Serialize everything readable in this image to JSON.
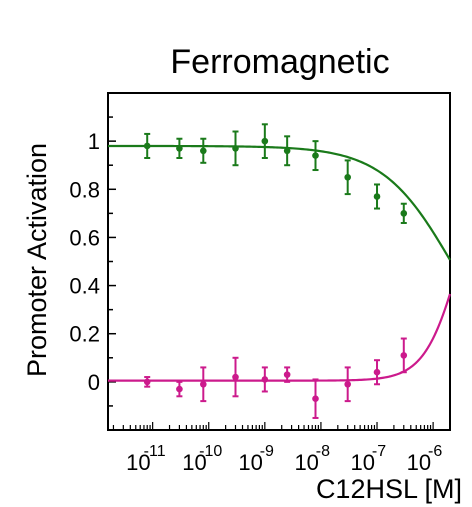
{
  "chart_data": {
    "type": "scatter",
    "title": "Ferromagnetic",
    "xlabel": "C12HSL [M]",
    "ylabel": "Promoter Activation",
    "x_scale": "log",
    "xlim": [
      1.6e-12,
      2e-06
    ],
    "ylim": [
      -0.2,
      1.2
    ],
    "grid": false,
    "x_ticks": [
      {
        "value": 1e-11,
        "base": "10",
        "exp": "-11"
      },
      {
        "value": 1e-10,
        "base": "10",
        "exp": "-10"
      },
      {
        "value": 1e-09,
        "base": "10",
        "exp": "-9"
      },
      {
        "value": 1e-08,
        "base": "10",
        "exp": "-8"
      },
      {
        "value": 1e-07,
        "base": "10",
        "exp": "-7"
      },
      {
        "value": 1e-06,
        "base": "10",
        "exp": "-6"
      }
    ],
    "y_ticks": [
      {
        "value": 0,
        "label": "0"
      },
      {
        "value": 0.2,
        "label": "0.2"
      },
      {
        "value": 0.4,
        "label": "0.4"
      },
      {
        "value": 0.6,
        "label": "0.6"
      },
      {
        "value": 0.8,
        "label": "0.8"
      },
      {
        "value": 1,
        "label": "1"
      }
    ],
    "series": [
      {
        "color": "#1a7a1a",
        "x": [
          8e-12,
          3e-11,
          8e-11,
          3e-10,
          1e-09,
          2.5e-09,
          8e-09,
          3e-08,
          1e-07,
          3e-07
        ],
        "y": [
          0.98,
          0.97,
          0.96,
          0.97,
          1.0,
          0.96,
          0.94,
          0.85,
          0.77,
          0.7
        ],
        "err": [
          0.05,
          0.04,
          0.05,
          0.07,
          0.07,
          0.06,
          0.06,
          0.07,
          0.05,
          0.04
        ],
        "fit": {
          "top": 0.98,
          "bottom": 0.0,
          "ec50": 2.2e-06,
          "hill": 0.7,
          "decreasing": true
        }
      },
      {
        "color": "#cc1a8c",
        "x": [
          8e-12,
          3e-11,
          8e-11,
          3e-10,
          1e-09,
          2.5e-09,
          8e-09,
          3e-08,
          1e-07,
          3e-07
        ],
        "y": [
          0.0,
          -0.03,
          -0.01,
          0.02,
          0.01,
          0.03,
          -0.07,
          -0.01,
          0.04,
          0.11
        ],
        "err": [
          0.02,
          0.03,
          0.07,
          0.08,
          0.05,
          0.03,
          0.08,
          0.07,
          0.05,
          0.07
        ],
        "fit": {
          "top": 1.0,
          "bottom": 0.005,
          "ec50": 3e-06,
          "hill": 1.4,
          "decreasing": false
        }
      }
    ]
  }
}
